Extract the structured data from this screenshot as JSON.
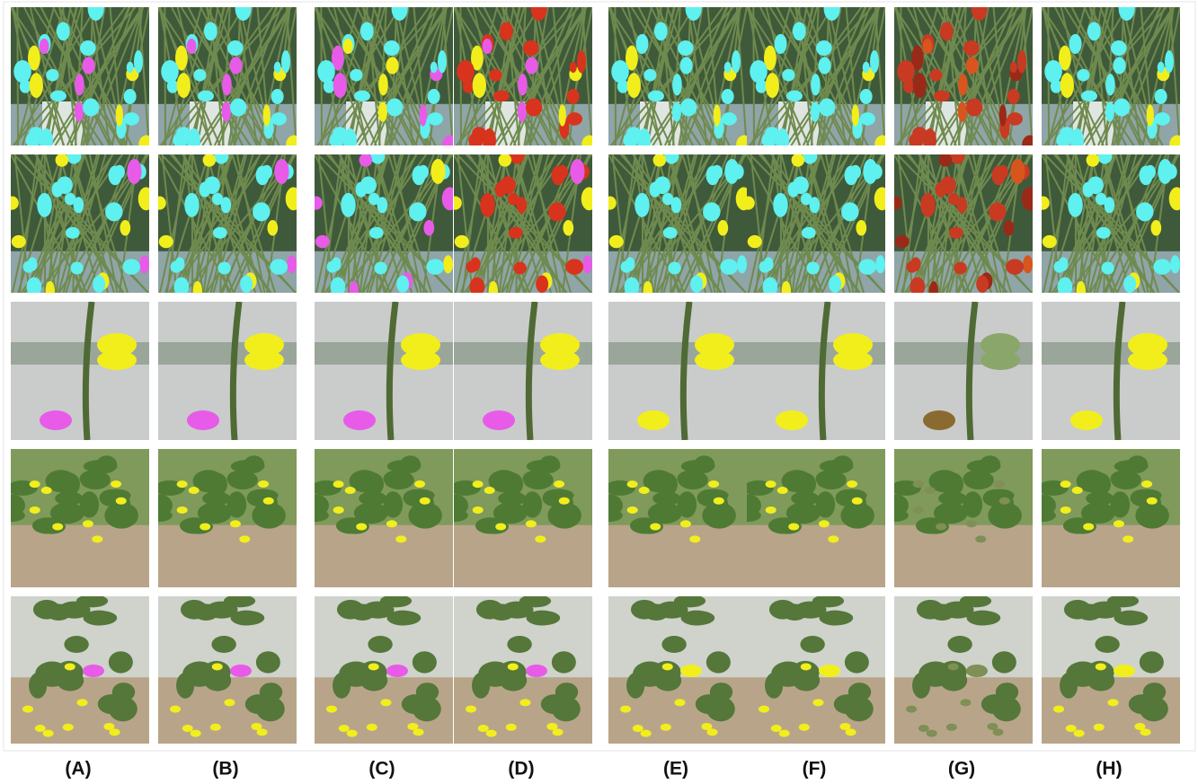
{
  "column_labels": [
    "(A)",
    "(B)",
    "(C)",
    "(D)",
    "(E)",
    "(F)",
    "(G)",
    "(H)"
  ]
}
